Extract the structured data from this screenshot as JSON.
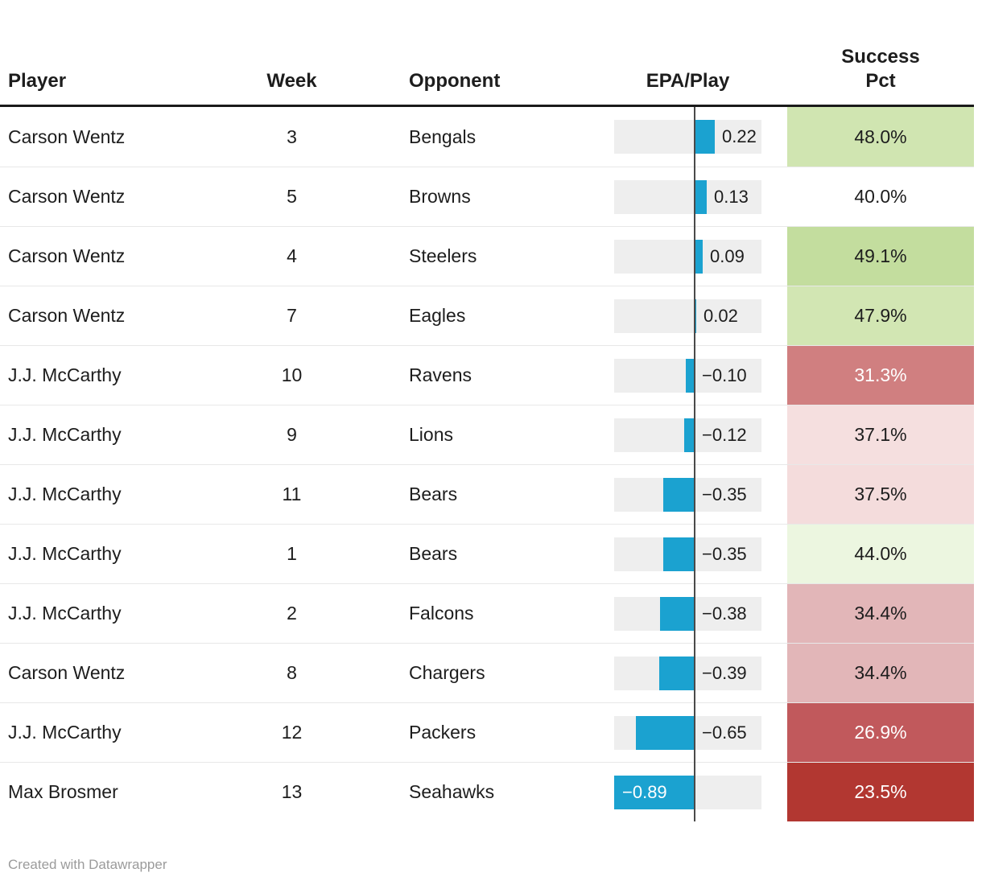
{
  "table": {
    "header": {
      "player": "Player",
      "week": "Week",
      "opponent": "Opponent",
      "epa": "EPA/Play",
      "success_line1": "Success",
      "success_line2": "Pct"
    },
    "rows": [
      {
        "player": "Carson Wentz",
        "week": "3",
        "opponent": "Bengals",
        "epa": 0.22,
        "epa_label": "0.22",
        "success": "48.0%",
        "success_bg": "#d0e5b1",
        "success_fg": "#1d1d1d"
      },
      {
        "player": "Carson Wentz",
        "week": "5",
        "opponent": "Browns",
        "epa": 0.13,
        "epa_label": "0.13",
        "success": "40.0%",
        "success_bg": "#ffffff",
        "success_fg": "#1d1d1d"
      },
      {
        "player": "Carson Wentz",
        "week": "4",
        "opponent": "Steelers",
        "epa": 0.09,
        "epa_label": "0.09",
        "success": "49.1%",
        "success_bg": "#c3dd9e",
        "success_fg": "#1d1d1d"
      },
      {
        "player": "Carson Wentz",
        "week": "7",
        "opponent": "Eagles",
        "epa": 0.02,
        "epa_label": "0.02",
        "success": "47.9%",
        "success_bg": "#d2e6b3",
        "success_fg": "#1d1d1d"
      },
      {
        "player": "J.J. McCarthy",
        "week": "10",
        "opponent": "Ravens",
        "epa": -0.1,
        "epa_label": "−0.10",
        "success": "31.3%",
        "success_bg": "#d07f80",
        "success_fg": "#ffffff"
      },
      {
        "player": "J.J. McCarthy",
        "week": "9",
        "opponent": "Lions",
        "epa": -0.12,
        "epa_label": "−0.12",
        "success": "37.1%",
        "success_bg": "#f5dfdf",
        "success_fg": "#1d1d1d"
      },
      {
        "player": "J.J. McCarthy",
        "week": "11",
        "opponent": "Bears",
        "epa": -0.35,
        "epa_label": "−0.35",
        "success": "37.5%",
        "success_bg": "#f4dcdc",
        "success_fg": "#1d1d1d"
      },
      {
        "player": "J.J. McCarthy",
        "week": "1",
        "opponent": "Bears",
        "epa": -0.35,
        "epa_label": "−0.35",
        "success": "44.0%",
        "success_bg": "#ecf6e0",
        "success_fg": "#1d1d1d"
      },
      {
        "player": "J.J. McCarthy",
        "week": "2",
        "opponent": "Falcons",
        "epa": -0.38,
        "epa_label": "−0.38",
        "success": "34.4%",
        "success_bg": "#e2b6b8",
        "success_fg": "#1d1d1d"
      },
      {
        "player": "Carson Wentz",
        "week": "8",
        "opponent": "Chargers",
        "epa": -0.39,
        "epa_label": "−0.39",
        "success": "34.4%",
        "success_bg": "#e2b6b8",
        "success_fg": "#1d1d1d"
      },
      {
        "player": "J.J. McCarthy",
        "week": "12",
        "opponent": "Packers",
        "epa": -0.65,
        "epa_label": "−0.65",
        "success": "26.9%",
        "success_bg": "#c1595c",
        "success_fg": "#ffffff"
      },
      {
        "player": "Max Brosmer",
        "week": "13",
        "opponent": "Seahawks",
        "epa": -0.89,
        "epa_label": "−0.89",
        "success": "23.5%",
        "success_bg": "#b23731",
        "success_fg": "#ffffff"
      }
    ]
  },
  "chart_data": {
    "type": "table",
    "columns": [
      "Player",
      "Week",
      "Opponent",
      "EPA/Play",
      "Success Pct"
    ],
    "rows": [
      [
        "Carson Wentz",
        3,
        "Bengals",
        0.22,
        48.0
      ],
      [
        "Carson Wentz",
        5,
        "Browns",
        0.13,
        40.0
      ],
      [
        "Carson Wentz",
        4,
        "Steelers",
        0.09,
        49.1
      ],
      [
        "Carson Wentz",
        7,
        "Eagles",
        0.02,
        47.9
      ],
      [
        "J.J. McCarthy",
        10,
        "Ravens",
        -0.1,
        31.3
      ],
      [
        "J.J. McCarthy",
        9,
        "Lions",
        -0.12,
        37.1
      ],
      [
        "J.J. McCarthy",
        11,
        "Bears",
        -0.35,
        37.5
      ],
      [
        "J.J. McCarthy",
        1,
        "Bears",
        -0.35,
        44.0
      ],
      [
        "J.J. McCarthy",
        2,
        "Falcons",
        -0.38,
        34.4
      ],
      [
        "Carson Wentz",
        8,
        "Chargers",
        -0.39,
        34.4
      ],
      [
        "J.J. McCarthy",
        12,
        "Packers",
        -0.65,
        26.9
      ],
      [
        "Max Brosmer",
        13,
        "Seahawks",
        -0.89,
        23.5
      ]
    ],
    "bar_column": "EPA/Play",
    "bar_axis_zero": true,
    "heatmap_column": "Success Pct",
    "legend_position": "none"
  },
  "colors": {
    "bar": "#1ba2d0",
    "track": "#eeeeee",
    "axis": "#4a4a4a",
    "header_border": "#1a1a1a",
    "divider": "#e8e8e8",
    "text": "#1d1d1d",
    "credit": "#9b9b9b"
  },
  "footer": {
    "credit": "Created with Datawrapper"
  }
}
